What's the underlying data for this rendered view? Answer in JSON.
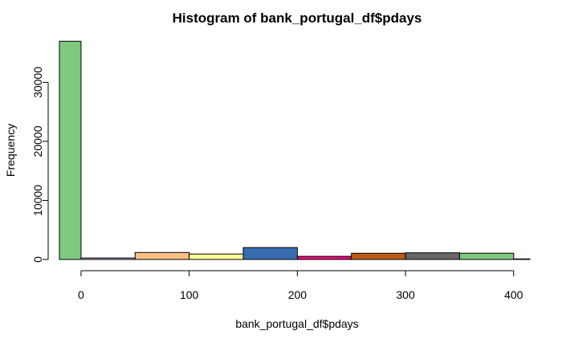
{
  "chart_data": {
    "type": "bar",
    "title": "Histogram of bank_portugal_df$pdays",
    "xlabel": "bank_portugal_df$pdays",
    "ylabel": "Frequency",
    "xlim": [
      -20,
      415
    ],
    "ylim": [
      0,
      37000
    ],
    "x_ticks": [
      0,
      100,
      200,
      300,
      400
    ],
    "y_ticks": [
      0,
      10000,
      20000,
      30000
    ],
    "bins": [
      {
        "x0": -20,
        "x1": 0,
        "value": 36954,
        "color": "#7fc97f"
      },
      {
        "x0": 0,
        "x1": 50,
        "value": 250,
        "color": "#beaed4"
      },
      {
        "x0": 50,
        "x1": 100,
        "value": 1180,
        "color": "#fdc086"
      },
      {
        "x0": 100,
        "x1": 150,
        "value": 920,
        "color": "#ffff99"
      },
      {
        "x0": 150,
        "x1": 200,
        "value": 2010,
        "color": "#386cb0"
      },
      {
        "x0": 200,
        "x1": 250,
        "value": 530,
        "color": "#f0027f"
      },
      {
        "x0": 250,
        "x1": 300,
        "value": 1050,
        "color": "#bf5b17"
      },
      {
        "x0": 300,
        "x1": 350,
        "value": 1130,
        "color": "#666666"
      },
      {
        "x0": 350,
        "x1": 400,
        "value": 1060,
        "color": "#7fc97f"
      },
      {
        "x0": 400,
        "x1": 415,
        "value": 90,
        "color": "#beaed4"
      }
    ],
    "grid": false,
    "legend": "none"
  }
}
